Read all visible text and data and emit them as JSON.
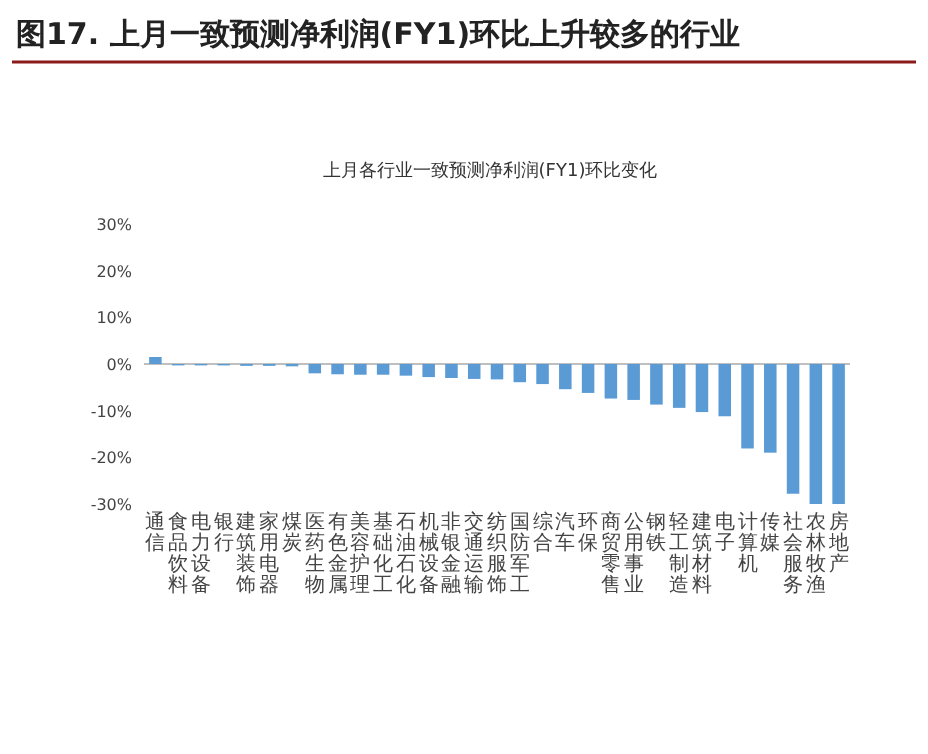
{
  "chart_data": {
    "type": "bar",
    "title": "图17. 上月一致预测净利润(FY1)环比上升较多的行业",
    "subtitle": "上月各行业一致预测净利润(FY1)环比变化",
    "categories": [
      "通信",
      "食品饮料",
      "电力设备",
      "银行",
      "建筑装饰",
      "家用电器",
      "煤炭",
      "医药生物",
      "有色金属",
      "美容护理",
      "基础化工",
      "石油石化",
      "机械设备",
      "非银金融",
      "交通运输",
      "纺织服饰",
      "国防军工",
      "综合",
      "汽车",
      "环保",
      "商贸零售",
      "公用事业",
      "钢铁",
      "轻工制造",
      "建筑材料",
      "电子",
      "计算机",
      "传媒",
      "社会服务",
      "农林牧渔",
      "房地产"
    ],
    "values": [
      1.5,
      -0.3,
      -0.3,
      -0.3,
      -0.4,
      -0.4,
      -0.5,
      -2.0,
      -2.2,
      -2.3,
      -2.3,
      -2.5,
      -2.8,
      -3.0,
      -3.2,
      -3.3,
      -3.9,
      -4.3,
      -5.4,
      -6.2,
      -7.4,
      -7.7,
      -8.7,
      -9.4,
      -10.3,
      -11.2,
      -18.1,
      -19.0,
      -27.8,
      -30.0,
      -30.0
    ],
    "color": "#5b9bd5",
    "ylim": [
      -30,
      30
    ],
    "yticks": [
      {
        "value": 30,
        "label": "30%"
      },
      {
        "value": 20,
        "label": "20%"
      },
      {
        "value": 10,
        "label": "10%"
      },
      {
        "value": 0,
        "label": "0%"
      },
      {
        "value": -10,
        "label": "-10%"
      },
      {
        "value": -20,
        "label": "-20%"
      },
      {
        "value": -30,
        "label": "-30%"
      }
    ]
  }
}
